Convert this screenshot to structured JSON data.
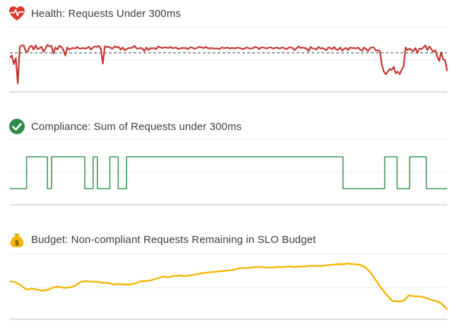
{
  "panels": [
    {
      "id": "health",
      "title": "Health: Requests Under 300ms",
      "icon": "heart-pulse-icon",
      "color": "#c5352f"
    },
    {
      "id": "compliance",
      "title": "Compliance: Sum of Requests under 300ms",
      "icon": "check-circle-icon",
      "color": "#3d9a5b"
    },
    {
      "id": "budget",
      "title": "Budget: Non-compliant Requests Remaining in SLO Budget",
      "icon": "money-bag-icon",
      "color": "#f2b705"
    }
  ],
  "chart_data": [
    {
      "type": "line",
      "title": "Health: Requests Under 300ms",
      "ylim": [
        0,
        1
      ],
      "grid": true,
      "threshold": 0.7,
      "series": [
        {
          "values": [
            0.61,
            0.65,
            0.49,
            0.6,
            0.13,
            0.81,
            0.84,
            0.84,
            0.73,
            0.72,
            0.81,
            0.83,
            0.76,
            0.84,
            0.77,
            0.79,
            0.81,
            0.72,
            0.78,
            0.85,
            0.82,
            0.83,
            0.69,
            0.8,
            0.76,
            0.83,
            0.81,
            0.76,
            0.65,
            0.8,
            0.76,
            0.78,
            0.79,
            0.78,
            0.81,
            0.78,
            0.78,
            0.79,
            0.78,
            0.79,
            0.81,
            0.76,
            0.8,
            0.82,
            0.81,
            0.83,
            0.77,
            0.5,
            0.82,
            0.81,
            0.81,
            0.79,
            0.78,
            0.82,
            0.8,
            0.81,
            0.76,
            0.8,
            0.75,
            0.77,
            0.79,
            0.79,
            0.8,
            0.83,
            0.78,
            0.78,
            0.79,
            0.78,
            0.73,
            0.8,
            0.75,
            0.79,
            0.78,
            0.79,
            0.77,
            0.82,
            0.8,
            0.79,
            0.8,
            0.8,
            0.79,
            0.81,
            0.79,
            0.79,
            0.8,
            0.77,
            0.78,
            0.79,
            0.79,
            0.79,
            0.77,
            0.8,
            0.8,
            0.78,
            0.78,
            0.8,
            0.81,
            0.8,
            0.79,
            0.81,
            0.79,
            0.78,
            0.79,
            0.78,
            0.78,
            0.78,
            0.77,
            0.8,
            0.79,
            0.79,
            0.8,
            0.78,
            0.79,
            0.79,
            0.78,
            0.8,
            0.79,
            0.78,
            0.77,
            0.79,
            0.8,
            0.78,
            0.78,
            0.79,
            0.81,
            0.8,
            0.77,
            0.8,
            0.8,
            0.79,
            0.78,
            0.8,
            0.8,
            0.78,
            0.79,
            0.8,
            0.78,
            0.79,
            0.8,
            0.78,
            0.77,
            0.8,
            0.8,
            0.79,
            0.75,
            0.79,
            0.82,
            0.79,
            0.8,
            0.79,
            0.78,
            0.73,
            0.81,
            0.78,
            0.78,
            0.76,
            0.81,
            0.78,
            0.79,
            0.77,
            0.75,
            0.8,
            0.79,
            0.77,
            0.81,
            0.76,
            0.76,
            0.8,
            0.74,
            0.78,
            0.79,
            0.75,
            0.8,
            0.79,
            0.79,
            0.78,
            0.8,
            0.76,
            0.74,
            0.8,
            0.77,
            0.73,
            0.79,
            0.8,
            0.8,
            0.74,
            0.75,
            0.73,
            0.48,
            0.35,
            0.3,
            0.35,
            0.4,
            0.38,
            0.44,
            0.32,
            0.35,
            0.3,
            0.38,
            0.45,
            0.8,
            0.75,
            0.78,
            0.75,
            0.73,
            0.79,
            0.7,
            0.78,
            0.77,
            0.8,
            0.84,
            0.75,
            0.82,
            0.77,
            0.72,
            0.75,
            0.63,
            0.55,
            0.71,
            0.58,
            0.56,
            0.36
          ]
        }
      ]
    },
    {
      "type": "line",
      "title": "Compliance: Sum of Requests under 300ms",
      "ylim": [
        0,
        1
      ],
      "grid": true,
      "series": [
        {
          "values": [
            0,
            0,
            0,
            0,
            1,
            1,
            1,
            1,
            1,
            0,
            1,
            1,
            1,
            1,
            1,
            1,
            1,
            1,
            0,
            0,
            1,
            0,
            0,
            0,
            1,
            1,
            0,
            0,
            1,
            1,
            1,
            1,
            1,
            1,
            1,
            1,
            1,
            1,
            1,
            1,
            1,
            1,
            1,
            1,
            1,
            1,
            1,
            1,
            1,
            1,
            1,
            1,
            1,
            1,
            1,
            1,
            1,
            1,
            1,
            1,
            1,
            1,
            1,
            1,
            1,
            1,
            1,
            1,
            1,
            1,
            1,
            1,
            1,
            1,
            1,
            1,
            1,
            1,
            1,
            1,
            0,
            0,
            0,
            0,
            0,
            0,
            0,
            0,
            0,
            0,
            1,
            1,
            1,
            0,
            0,
            0,
            1,
            1,
            1,
            1,
            0,
            0,
            0,
            0,
            0,
            0
          ]
        }
      ]
    },
    {
      "type": "line",
      "title": "Budget: Non-compliant Requests Remaining in SLO Budget",
      "ylim": [
        0,
        1
      ],
      "grid": true,
      "series": [
        {
          "values": [
            0.55,
            0.53,
            0.48,
            0.4,
            0.42,
            0.4,
            0.38,
            0.4,
            0.44,
            0.45,
            0.43,
            0.44,
            0.47,
            0.54,
            0.55,
            0.54,
            0.54,
            0.52,
            0.52,
            0.49,
            0.5,
            0.49,
            0.49,
            0.51,
            0.55,
            0.55,
            0.57,
            0.6,
            0.63,
            0.62,
            0.64,
            0.65,
            0.64,
            0.65,
            0.67,
            0.69,
            0.7,
            0.71,
            0.72,
            0.73,
            0.74,
            0.75,
            0.78,
            0.78,
            0.79,
            0.8,
            0.8,
            0.79,
            0.79,
            0.8,
            0.8,
            0.81,
            0.8,
            0.81,
            0.81,
            0.82,
            0.82,
            0.82,
            0.83,
            0.84,
            0.85,
            0.85,
            0.86,
            0.85,
            0.84,
            0.8,
            0.7,
            0.56,
            0.42,
            0.3,
            0.2,
            0.19,
            0.2,
            0.3,
            0.28,
            0.28,
            0.26,
            0.22,
            0.2,
            0.15,
            0.05
          ]
        }
      ]
    }
  ]
}
